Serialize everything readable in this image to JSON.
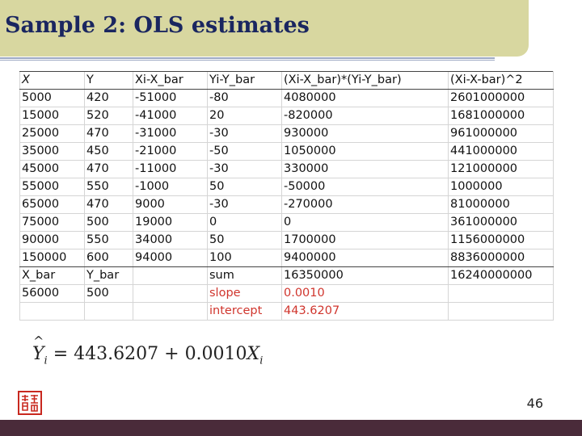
{
  "slide": {
    "title": "Sample 2: OLS estimates",
    "page_number": "46"
  },
  "table": {
    "rows": [
      [
        "X",
        "Y",
        "Xi-X_bar",
        "Yi-Y_bar",
        "(Xi-X_bar)*(Yi-Y_bar)",
        "(Xi-X-bar)^2"
      ],
      [
        "5000",
        "420",
        "-51000",
        "-80",
        "4080000",
        "2601000000"
      ],
      [
        "15000",
        "520",
        "-41000",
        "20",
        "-820000",
        "1681000000"
      ],
      [
        "25000",
        "470",
        "-31000",
        "-30",
        "930000",
        "961000000"
      ],
      [
        "35000",
        "450",
        "-21000",
        "-50",
        "1050000",
        "441000000"
      ],
      [
        "45000",
        "470",
        "-11000",
        "-30",
        "330000",
        "121000000"
      ],
      [
        "55000",
        "550",
        "-1000",
        "50",
        "-50000",
        "1000000"
      ],
      [
        "65000",
        "470",
        "9000",
        "-30",
        "-270000",
        "81000000"
      ],
      [
        "75000",
        "500",
        "19000",
        "0",
        "0",
        "361000000"
      ],
      [
        "90000",
        "550",
        "34000",
        "50",
        "1700000",
        "1156000000"
      ],
      [
        "150000",
        "600",
        "94000",
        "100",
        "9400000",
        "8836000000"
      ],
      [
        "X_bar",
        "Y_bar",
        "",
        "sum",
        "16350000",
        "16240000000"
      ],
      [
        "56000",
        "500",
        "",
        "slope",
        "0.0010",
        ""
      ],
      [
        "",
        "",
        "",
        "intercept",
        "443.6207",
        ""
      ]
    ]
  },
  "equation": {
    "lhs_symbol": "Y",
    "lhs_hat": "^",
    "lhs_subscript": "i",
    "equals": "=",
    "intercept": "443.6207",
    "plus": "+",
    "slope": "0.0010",
    "rhs_symbol": "X",
    "rhs_subscript": "i"
  },
  "colors": {
    "title_bar": "#d8d7a0",
    "title_text": "#1a2660",
    "highlight_text": "#d0352d",
    "footer_bar": "#4a2b3a"
  },
  "icons": {
    "seal": "red-seal-stamp-icon"
  }
}
